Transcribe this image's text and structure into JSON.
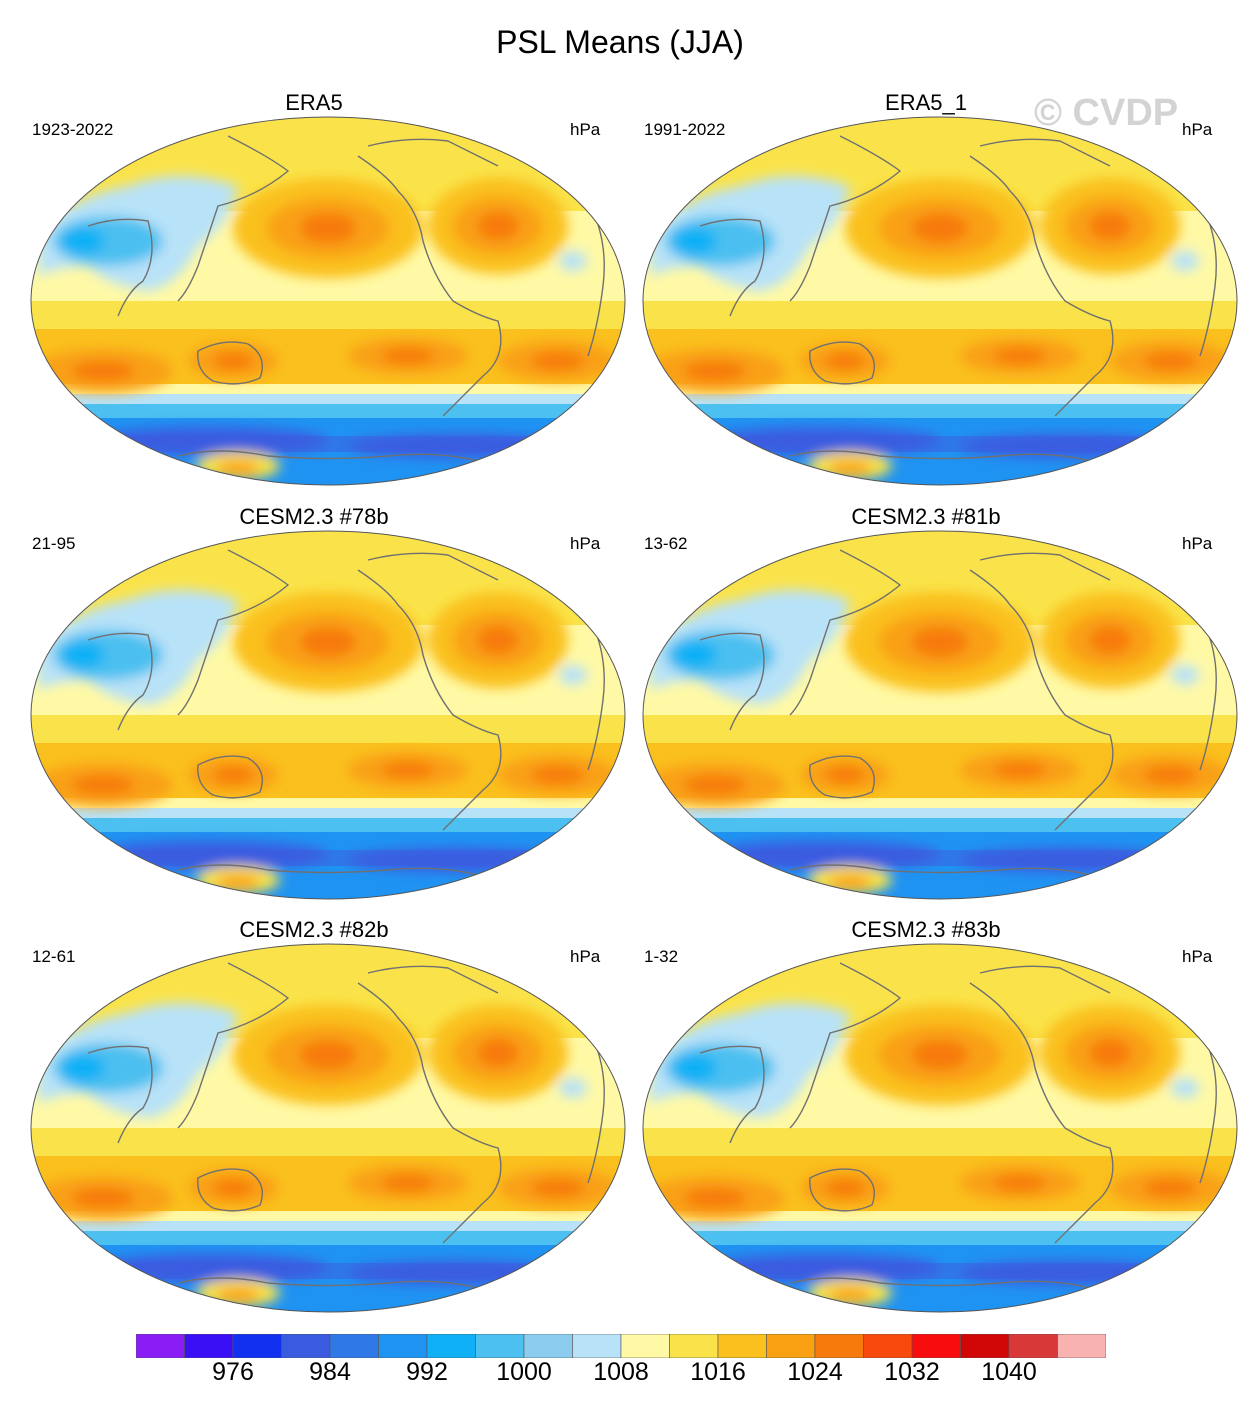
{
  "title": "PSL Means (JJA)",
  "watermark": "© CVDP",
  "colors": {
    "coast": "#707070",
    "levels": [
      "#8a1cf5",
      "#3b0ff5",
      "#1230f0",
      "#3a5be0",
      "#2f78e8",
      "#1f93f2",
      "#0fb0f6",
      "#4cc0f0",
      "#8ccdef",
      "#b8e2f8",
      "#fff9a6",
      "#fae34a",
      "#fac01e",
      "#f9a013",
      "#f77a0c",
      "#f74a0c",
      "#f70d0d",
      "#d10707",
      "#d93838",
      "#f8b2b0"
    ]
  },
  "units": "hPa",
  "panels": [
    {
      "title": "ERA5",
      "period": "1923-2022",
      "units": "hPa"
    },
    {
      "title": "ERA5_1",
      "period": "1991-2022",
      "units": "hPa"
    },
    {
      "title": "CESM2.3 #78b",
      "period": "21-95",
      "units": "hPa"
    },
    {
      "title": "CESM2.3 #81b",
      "period": "13-62",
      "units": "hPa"
    },
    {
      "title": "CESM2.3 #82b",
      "period": "12-61",
      "units": "hPa"
    },
    {
      "title": "CESM2.3 #83b",
      "period": "1-32",
      "units": "hPa"
    }
  ],
  "colorbar": {
    "labels": [
      "976",
      "984",
      "992",
      "1000",
      "1008",
      "1016",
      "1024",
      "1032",
      "1040"
    ]
  }
}
